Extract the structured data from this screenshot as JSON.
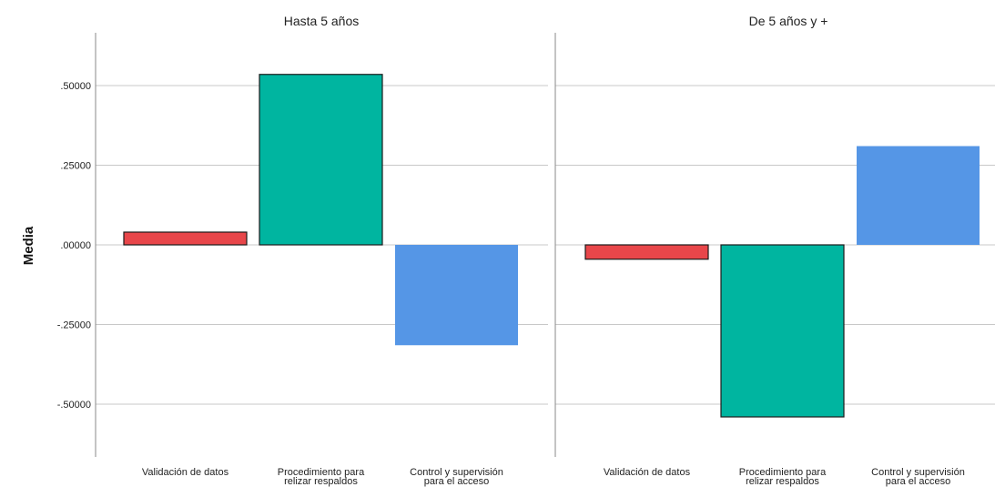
{
  "chart_data": [
    {
      "type": "bar",
      "title": "Hasta 5 años",
      "ylabel": "Media",
      "ylim": [
        -0.66,
        0.66
      ],
      "yticks": [
        ".50000",
        ".25000",
        ".00000",
        "-.25000",
        "-.50000"
      ],
      "ytick_values": [
        0.5,
        0.25,
        0,
        -0.25,
        -0.5
      ],
      "grid": true,
      "categories": [
        [
          "Validación de datos"
        ],
        [
          "Procedimiento para",
          "relizar respaldos"
        ],
        [
          "Control y supervisión",
          "para el acceso"
        ]
      ],
      "values": [
        0.04,
        0.535,
        -0.315
      ],
      "colors": [
        "#e8464a",
        "#00b5a0",
        "#5596e6"
      ],
      "outlined": [
        true,
        true,
        false
      ]
    },
    {
      "type": "bar",
      "title": "De 5 años y +",
      "ylim": [
        -0.66,
        0.66
      ],
      "grid": true,
      "categories": [
        [
          "Validación de datos"
        ],
        [
          "Procedimiento para",
          "relizar respaldos"
        ],
        [
          "Control y supervisión",
          "para el acceso"
        ]
      ],
      "values": [
        -0.045,
        -0.54,
        0.31
      ],
      "colors": [
        "#e8464a",
        "#00b5a0",
        "#5596e6"
      ],
      "outlined": [
        true,
        true,
        false
      ]
    }
  ]
}
